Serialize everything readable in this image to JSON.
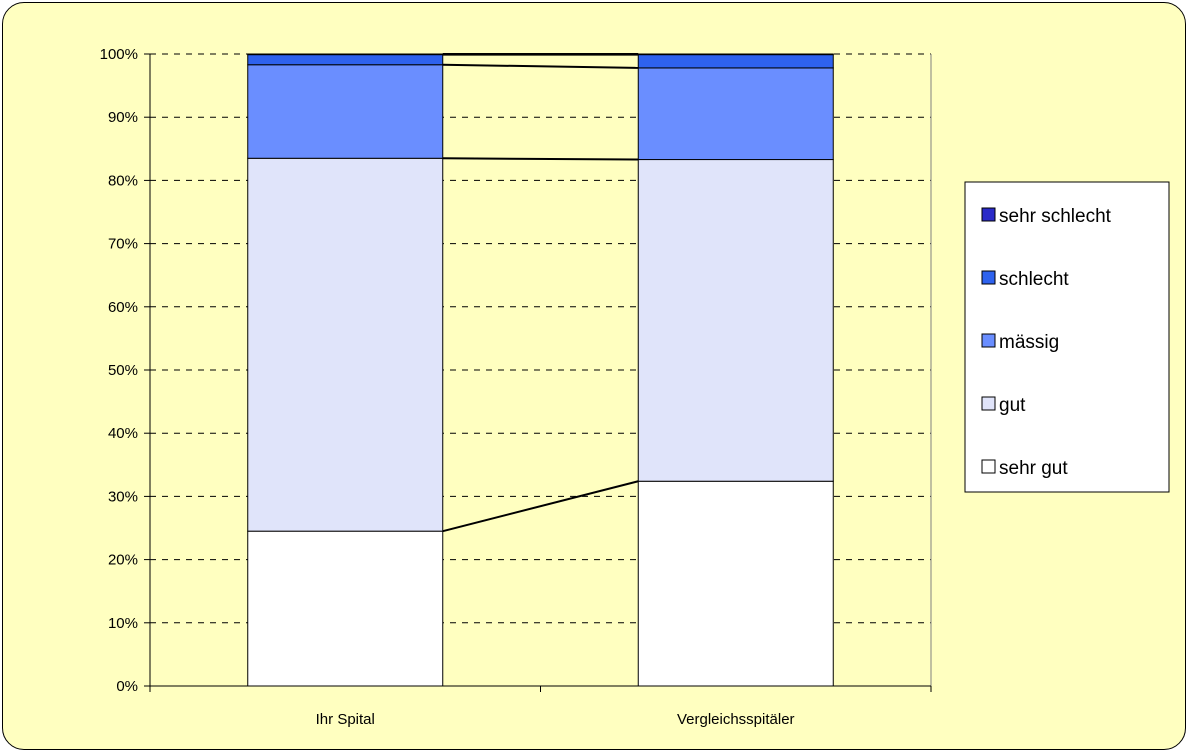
{
  "chart_data": {
    "type": "bar",
    "stacked": true,
    "normalized_percent": true,
    "categories": [
      "Ihr Spital",
      "Vergleichsspitäler"
    ],
    "series": [
      {
        "name": "sehr gut",
        "values": [
          24.5,
          32.4
        ],
        "color": "#FFFFFF"
      },
      {
        "name": "gut",
        "values": [
          59.0,
          50.9
        ],
        "color": "#E0E4FA"
      },
      {
        "name": "mässig",
        "values": [
          14.8,
          14.5
        ],
        "color": "#6A8EFF"
      },
      {
        "name": "schlecht",
        "values": [
          1.6,
          2.1
        ],
        "color": "#2E62EE"
      },
      {
        "name": "sehr schlecht",
        "values": [
          0.1,
          0.1
        ],
        "color": "#2A2AC8"
      }
    ],
    "ylim": [
      0,
      100
    ],
    "yticks": [
      "0%",
      "10%",
      "20%",
      "30%",
      "40%",
      "50%",
      "60%",
      "70%",
      "80%",
      "90%",
      "100%"
    ],
    "ygrid": "dashed",
    "series_lines": true,
    "legend": "right",
    "legend_order": [
      "sehr schlecht",
      "schlecht",
      "mässig",
      "gut",
      "sehr gut"
    ],
    "plot_background": "#FFFFC0",
    "title": "",
    "xlabel": "",
    "ylabel": ""
  }
}
